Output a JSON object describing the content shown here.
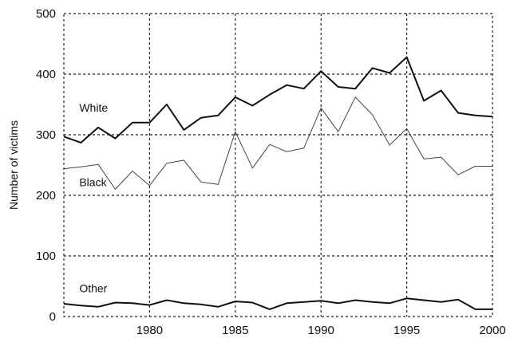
{
  "chart_data": {
    "type": "line",
    "title": "",
    "xlabel": "",
    "ylabel": "Number of victims",
    "xlim": [
      1975,
      2000
    ],
    "ylim": [
      0,
      500
    ],
    "xticks": [
      1980,
      1985,
      1990,
      1995,
      2000
    ],
    "yticks": [
      0,
      100,
      200,
      300,
      400,
      500
    ],
    "grid": true,
    "x": [
      1975,
      1976,
      1977,
      1978,
      1979,
      1980,
      1981,
      1982,
      1983,
      1984,
      1985,
      1986,
      1987,
      1988,
      1989,
      1990,
      1991,
      1992,
      1993,
      1994,
      1995,
      1996,
      1997,
      1998,
      1999,
      2000
    ],
    "series": [
      {
        "name": "White",
        "color": "#111111",
        "style": "solid",
        "values": [
          297,
          287,
          312,
          294,
          320,
          320,
          350,
          308,
          328,
          332,
          362,
          348,
          366,
          382,
          376,
          405,
          379,
          376,
          410,
          402,
          428,
          356,
          373,
          336,
          332,
          330
        ]
      },
      {
        "name": "Black",
        "color": "#444444",
        "style": "thin",
        "values": [
          244,
          247,
          251,
          210,
          240,
          216,
          253,
          258,
          222,
          218,
          305,
          245,
          284,
          272,
          278,
          344,
          305,
          362,
          333,
          283,
          310,
          260,
          263,
          234,
          248,
          248
        ]
      },
      {
        "name": "Other",
        "color": "#111111",
        "style": "solid",
        "values": [
          21,
          18,
          16,
          23,
          22,
          19,
          27,
          22,
          20,
          16,
          25,
          23,
          12,
          22,
          24,
          26,
          22,
          27,
          24,
          22,
          30,
          27,
          24,
          28,
          12,
          12
        ]
      }
    ]
  }
}
